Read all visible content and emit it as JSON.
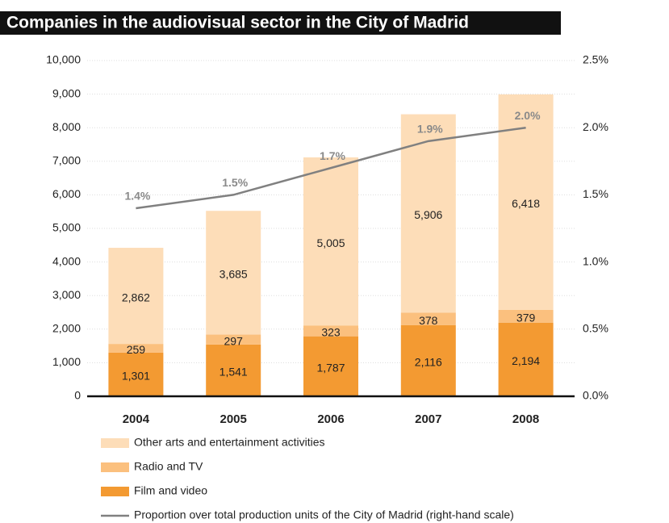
{
  "chart_data": {
    "type": "bar",
    "stacked": true,
    "title": "Companies in the audiovisual sector in the City of Madrid",
    "categories": [
      "2004",
      "2005",
      "2006",
      "2007",
      "2008"
    ],
    "series": [
      {
        "name": "Film and video",
        "color": "#f39a32",
        "values": [
          1301,
          1541,
          1787,
          2116,
          2194
        ],
        "value_labels": [
          "1,301",
          "1,541",
          "1,787",
          "2,116",
          "2,194"
        ]
      },
      {
        "name": "Radio and TV",
        "color": "#fbc07e",
        "values": [
          259,
          297,
          323,
          378,
          379
        ]
      },
      {
        "name": "Other arts and entertainment activities",
        "color": "#fdddb8",
        "values": [
          2862,
          3685,
          5005,
          5906,
          6418
        ],
        "value_labels": [
          "2,862",
          "3,685",
          "5,005",
          "5,906",
          "6,418"
        ]
      },
      {
        "name": "Proportion over total production units of the City of Madrid (right-hand scale)",
        "type": "line",
        "axis": "y2",
        "color": "#808080",
        "values": [
          1.4,
          1.5,
          1.7,
          1.9,
          2.0
        ],
        "value_labels": [
          "1.4%",
          "1.5%",
          "1.7%",
          "1.9%",
          "2.0%"
        ]
      }
    ],
    "ylim": [
      0,
      10000
    ],
    "yticks": [
      0,
      {
        "value": 1000,
        "label": "1,000"
      },
      {
        "value": 2000,
        "label": "2,000"
      },
      {
        "value": 3000,
        "label": "3,000"
      },
      {
        "value": 4000,
        "label": "4,000"
      },
      {
        "value": 5000,
        "label": "5,000"
      },
      {
        "value": 6000,
        "label": "6,000"
      },
      {
        "value": 7000,
        "label": "7,000"
      },
      {
        "value": 8000,
        "label": "8,000"
      },
      {
        "value": 9000,
        "label": "9,000"
      },
      {
        "value": 10000,
        "label": "10,000"
      }
    ],
    "y2lim": [
      0,
      2.5
    ],
    "y2ticks": [
      {
        "value": 0,
        "label": "0.0%"
      },
      {
        "value": 0.5,
        "label": "0.5%"
      },
      {
        "value": 1.0,
        "label": "1.0%"
      },
      {
        "value": 1.5,
        "label": "1.5%"
      },
      {
        "value": 2.0,
        "label": "2.0%"
      },
      {
        "value": 2.5,
        "label": "2.5%"
      }
    ],
    "grid": true,
    "legend": "bottom"
  }
}
